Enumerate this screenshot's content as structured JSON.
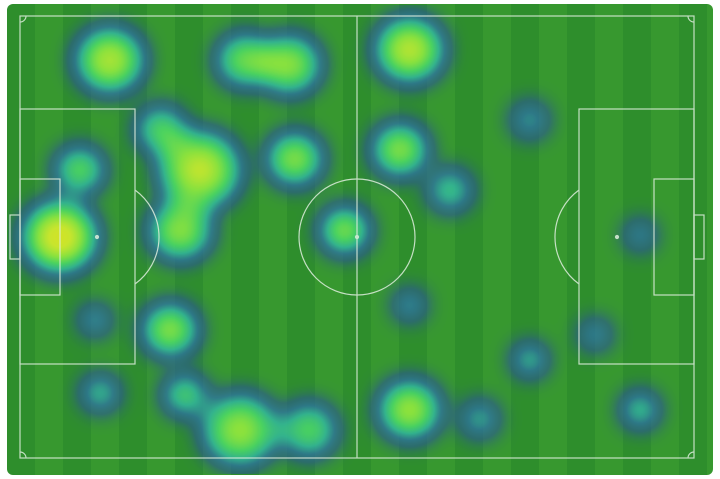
{
  "chart_data": {
    "type": "heatmap",
    "title": "",
    "background": "football-pitch",
    "xlim": [
      0,
      105
    ],
    "ylim": [
      0,
      68
    ],
    "grid": false,
    "colors": {
      "pitch_light": "#37982f",
      "pitch_dark": "#2e8e2c",
      "lines": "#d8e8d8",
      "low": "#2a4f9a",
      "mid": "#3cc8a0",
      "high": "#b0e830",
      "peak": "#e0e020",
      "max": "#d05020"
    },
    "hotspots": [
      {
        "x": 6.2,
        "y": 34,
        "intensity": 1.0,
        "radius": 6
      },
      {
        "x": 9.3,
        "y": 23.7,
        "intensity": 0.55,
        "radius": 4
      },
      {
        "x": 14,
        "y": 6.8,
        "intensity": 0.8,
        "radius": 5.5
      },
      {
        "x": 22,
        "y": 17.5,
        "intensity": 0.5,
        "radius": 4
      },
      {
        "x": 28,
        "y": 23.7,
        "intensity": 0.85,
        "radius": 6.5
      },
      {
        "x": 25,
        "y": 33,
        "intensity": 0.7,
        "radius": 5
      },
      {
        "x": 35,
        "y": 6.8,
        "intensity": 0.6,
        "radius": 4.5
      },
      {
        "x": 42,
        "y": 7.5,
        "intensity": 0.7,
        "radius": 5
      },
      {
        "x": 42.8,
        "y": 22,
        "intensity": 0.7,
        "radius": 4.5
      },
      {
        "x": 60.7,
        "y": 5.2,
        "intensity": 0.85,
        "radius": 5.5
      },
      {
        "x": 59.2,
        "y": 20.6,
        "intensity": 0.7,
        "radius": 4.5
      },
      {
        "x": 67,
        "y": 26.8,
        "intensity": 0.4,
        "radius": 3.5
      },
      {
        "x": 50.6,
        "y": 33,
        "intensity": 0.7,
        "radius": 4
      },
      {
        "x": 23.4,
        "y": 48.3,
        "intensity": 0.7,
        "radius": 4.5
      },
      {
        "x": 11.7,
        "y": 46.8,
        "intensity": 0.3,
        "radius": 2.5
      },
      {
        "x": 12.5,
        "y": 58,
        "intensity": 0.4,
        "radius": 3
      },
      {
        "x": 25.7,
        "y": 58.3,
        "intensity": 0.5,
        "radius": 3.5
      },
      {
        "x": 34.3,
        "y": 63.7,
        "intensity": 0.7,
        "radius": 6
      },
      {
        "x": 45,
        "y": 63.7,
        "intensity": 0.5,
        "radius": 4.5
      },
      {
        "x": 60.7,
        "y": 60.6,
        "intensity": 0.75,
        "radius": 5
      },
      {
        "x": 60.7,
        "y": 44.5,
        "intensity": 0.3,
        "radius": 2.5
      },
      {
        "x": 71.6,
        "y": 62,
        "intensity": 0.3,
        "radius": 3
      },
      {
        "x": 79.4,
        "y": 52.9,
        "intensity": 0.4,
        "radius": 2.8
      },
      {
        "x": 79.4,
        "y": 16,
        "intensity": 0.2,
        "radius": 3
      },
      {
        "x": 89.6,
        "y": 49,
        "intensity": 0.25,
        "radius": 2.5
      },
      {
        "x": 96.6,
        "y": 60.6,
        "intensity": 0.45,
        "radius": 3
      },
      {
        "x": 96.6,
        "y": 33.7,
        "intensity": 0.2,
        "radius": 2.5
      }
    ]
  }
}
